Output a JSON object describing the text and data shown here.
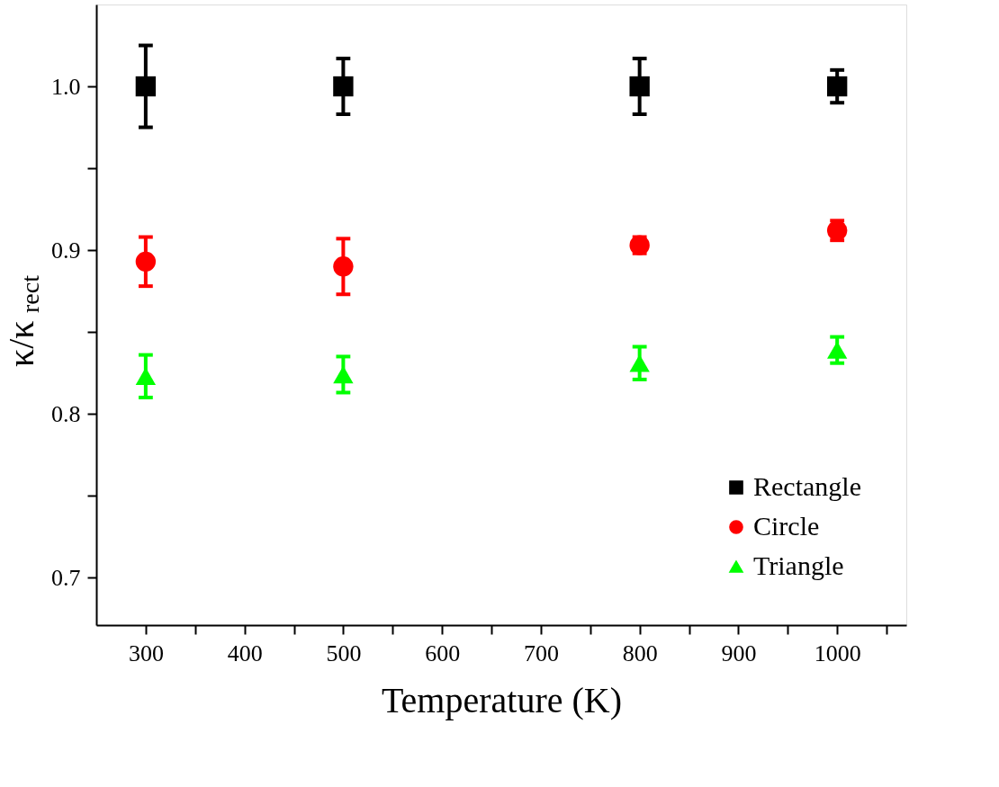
{
  "chart_data": {
    "type": "scatter",
    "xlabel": "Temperature (K)",
    "ylabel": "κ/κ$_{rect}$",
    "x": [
      300,
      500,
      800,
      1000
    ],
    "series": [
      {
        "name": "Rectangle",
        "color": "#000000",
        "marker": "square",
        "values": [
          1.0,
          1.0,
          1.0,
          1.0
        ],
        "errors": [
          0.025,
          0.017,
          0.017,
          0.01
        ]
      },
      {
        "name": "Circle",
        "color": "#ff0000",
        "marker": "circle",
        "values": [
          0.893,
          0.89,
          0.903,
          0.912
        ],
        "errors": [
          0.015,
          0.017,
          0.005,
          0.006
        ]
      },
      {
        "name": "Triangle",
        "color": "#00ff00",
        "marker": "triangle",
        "values": [
          0.823,
          0.824,
          0.831,
          0.839
        ],
        "errors": [
          0.013,
          0.011,
          0.01,
          0.008
        ]
      }
    ],
    "xlim": [
      250,
      1070
    ],
    "xticks": [
      300,
      {
        "value": 350,
        "label": null
      },
      400,
      {
        "value": 450,
        "label": null
      },
      500,
      {
        "value": 550,
        "label": null
      },
      600,
      {
        "value": 650,
        "label": null
      },
      700,
      {
        "value": 750,
        "label": null
      },
      800,
      {
        "value": 850,
        "label": null
      },
      900,
      {
        "value": 950,
        "label": null
      },
      1000,
      {
        "value": 1050,
        "label": null
      }
    ],
    "ylim": [
      0.671,
      1.05
    ],
    "yticks": [
      0.7,
      {
        "value": 0.75,
        "label": null
      },
      0.8,
      {
        "value": 0.85,
        "label": null
      },
      0.9,
      {
        "value": 0.95,
        "label": null
      },
      {
        "value": 1.0,
        "label": "1.0"
      }
    ],
    "legend": "bottom right",
    "grid": false
  }
}
